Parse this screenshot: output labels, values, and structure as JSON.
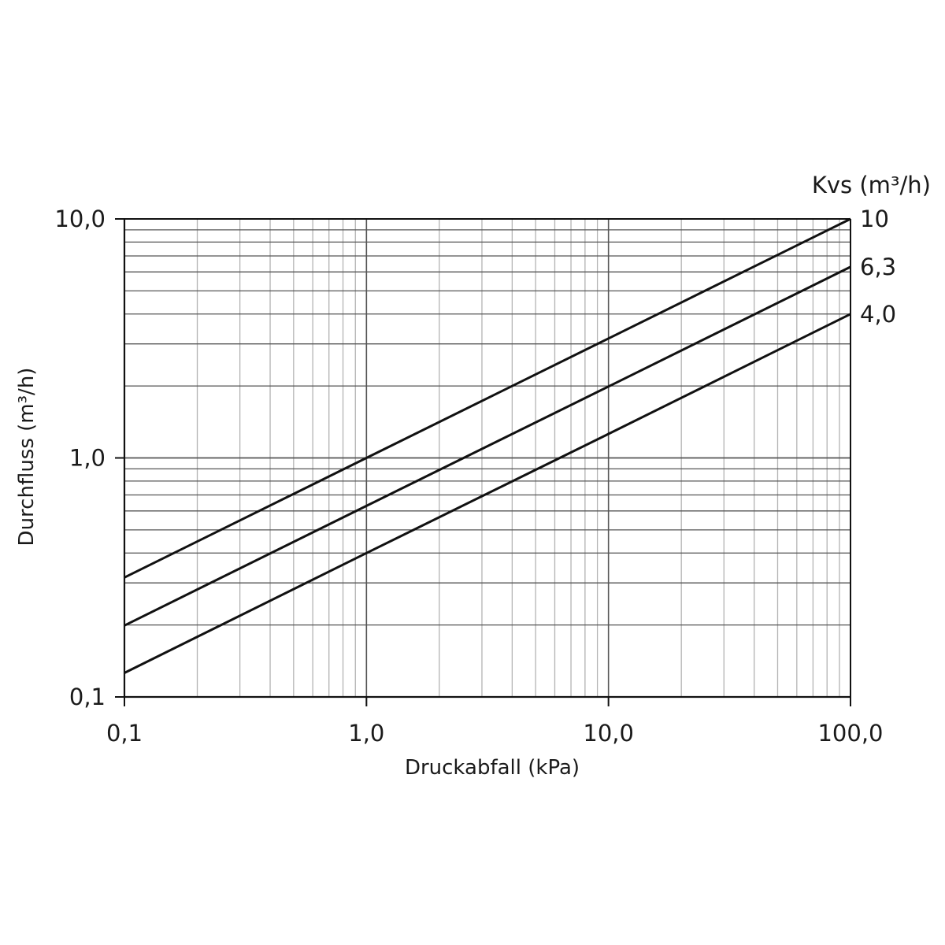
{
  "chart_data": {
    "type": "line",
    "xlabel": "Druckabfall (kPa)",
    "ylabel": "Durchfluss  (m³/h)",
    "x_scale": "log",
    "y_scale": "log",
    "xlim": [
      0.1,
      100
    ],
    "ylim": [
      0.1,
      10
    ],
    "grid": true,
    "x_ticks": [
      {
        "value": 0.1,
        "label": "0,1"
      },
      {
        "value": 1,
        "label": "1,0"
      },
      {
        "value": 10,
        "label": "10,0"
      },
      {
        "value": 100,
        "label": "100,0"
      }
    ],
    "y_ticks": [
      {
        "value": 0.1,
        "label": "0,1"
      },
      {
        "value": 1,
        "label": "1,0"
      },
      {
        "value": 10,
        "label": "10,0"
      }
    ],
    "legend_title": "Kvs (m³/h)",
    "series": [
      {
        "name": "10",
        "x": [
          0.1,
          1,
          10,
          100
        ],
        "y": [
          0.316,
          1.0,
          3.16,
          10.0
        ]
      },
      {
        "name": "6,3",
        "x": [
          0.1,
          1,
          10,
          100
        ],
        "y": [
          0.199,
          0.63,
          1.99,
          6.3
        ]
      },
      {
        "name": "4,0",
        "x": [
          0.1,
          1,
          10,
          100
        ],
        "y": [
          0.126,
          0.4,
          1.26,
          4.0
        ]
      }
    ],
    "colors": {
      "line": "#111111",
      "major_grid": "#555555",
      "minor_grid": "#b3b3b3",
      "axis": "#111111"
    }
  }
}
